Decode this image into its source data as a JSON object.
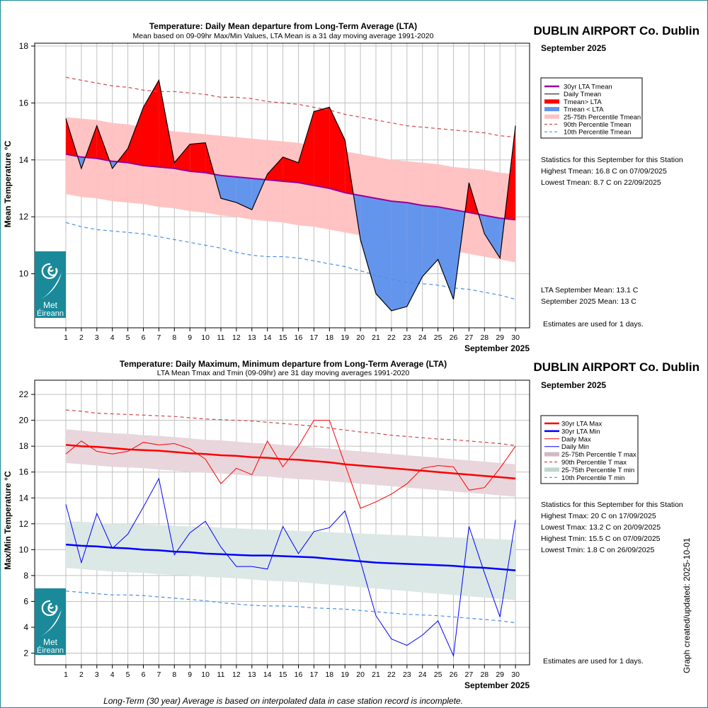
{
  "station": "DUBLIN AIRPORT Co. Dublin",
  "month": "September 2025",
  "footer_note": "Long-Term (30 year) Average is based on interpolated data in case station record is incomplete.",
  "created": "Graph created/updated:  2025-10-01",
  "logo_text": [
    "Met",
    "Éireann"
  ],
  "colors": {
    "logo_bg": "#1a8a9a",
    "above": "#ff0000",
    "below": "#6495ed",
    "lta": "#990099",
    "pct_band_top": "#ffc0c0",
    "red": "#ff0000",
    "blue": "#0000ff",
    "max_band": "#e8d6dc",
    "min_band": "#dbe8e6",
    "p90": "#d04a4a",
    "p10": "#4a8ee8"
  },
  "chart_data": [
    {
      "type": "line",
      "title": "Temperature: Daily Mean departure from Long-Term Average (LTA)",
      "subtitle": "Mean based on 09-09hr Max/Min Values, LTA Mean is a 31 day moving average 1991-2020",
      "ylabel": "Mean Temperature °C",
      "xlabel": "September 2025",
      "ylim": [
        8.1,
        18.1
      ],
      "yticks": [
        10,
        12,
        14,
        16,
        18
      ],
      "x": [
        1,
        2,
        3,
        4,
        5,
        6,
        7,
        8,
        9,
        10,
        11,
        12,
        13,
        14,
        15,
        16,
        17,
        18,
        19,
        20,
        21,
        22,
        23,
        24,
        25,
        26,
        27,
        28,
        29,
        30
      ],
      "series": [
        {
          "name": "30yr LTA Tmean",
          "values": [
            14.2,
            14.1,
            14.05,
            13.95,
            13.9,
            13.8,
            13.75,
            13.7,
            13.6,
            13.55,
            13.45,
            13.4,
            13.35,
            13.3,
            13.25,
            13.2,
            13.1,
            13.0,
            12.85,
            12.75,
            12.65,
            12.55,
            12.5,
            12.4,
            12.35,
            12.25,
            12.15,
            12.05,
            11.95,
            11.9
          ]
        },
        {
          "name": "Daily Tmean",
          "values": [
            15.45,
            13.7,
            15.2,
            13.7,
            14.4,
            15.85,
            16.8,
            13.9,
            14.55,
            14.6,
            12.65,
            12.5,
            12.25,
            13.5,
            14.1,
            13.9,
            15.7,
            15.85,
            14.7,
            11.2,
            9.3,
            8.7,
            8.85,
            9.9,
            10.5,
            9.1,
            13.2,
            11.4,
            10.55,
            15.2
          ]
        },
        {
          "name": "25-75th Percentile Tmean",
          "upper": [
            15.5,
            15.45,
            15.4,
            15.3,
            15.25,
            15.15,
            15.1,
            15.0,
            14.95,
            14.9,
            14.85,
            14.8,
            14.75,
            14.7,
            14.65,
            14.6,
            14.5,
            14.4,
            14.3,
            14.2,
            14.1,
            14.0,
            13.95,
            13.9,
            13.85,
            13.75,
            13.7,
            13.65,
            13.55,
            13.5
          ],
          "lower": [
            12.8,
            12.7,
            12.65,
            12.55,
            12.5,
            12.45,
            12.35,
            12.3,
            12.2,
            12.15,
            12.05,
            12.0,
            11.9,
            11.85,
            11.8,
            11.7,
            11.65,
            11.55,
            11.45,
            11.35,
            11.25,
            11.15,
            11.05,
            11.0,
            10.9,
            10.8,
            10.7,
            10.6,
            10.5,
            10.4
          ]
        },
        {
          "name": "90th Percentile Tmean",
          "values": [
            16.9,
            16.8,
            16.7,
            16.6,
            16.55,
            16.45,
            16.4,
            16.4,
            16.35,
            16.3,
            16.2,
            16.2,
            16.15,
            16.05,
            16.0,
            15.95,
            15.85,
            15.75,
            15.6,
            15.5,
            15.4,
            15.3,
            15.2,
            15.15,
            15.1,
            15.05,
            15.0,
            14.95,
            14.85,
            14.8
          ]
        },
        {
          "name": "10th Percentile Tmean",
          "values": [
            11.8,
            11.65,
            11.55,
            11.5,
            11.45,
            11.4,
            11.3,
            11.2,
            11.1,
            11.0,
            10.9,
            10.75,
            10.65,
            10.6,
            10.6,
            10.55,
            10.45,
            10.35,
            10.25,
            10.1,
            9.95,
            9.8,
            9.7,
            9.65,
            9.6,
            9.5,
            9.45,
            9.35,
            9.25,
            9.1
          ]
        }
      ],
      "legend": [
        "30yr LTA Tmean",
        "Daily Tmean",
        "Tmean> LTA",
        "Tmean < LTA",
        "25-75th Percentile Tmean",
        "90th Percentile Tmean",
        "10th Percentile Tmean"
      ],
      "legend_position": "right",
      "stats_title": "Statistics for this September for this Station",
      "stats": [
        "Highest Tmean: 16.8 C on 07/09/2025",
        "Lowest Tmean: 8.7 C on 22/09/2025"
      ],
      "means": [
        "LTA September Mean: 13.1 C",
        "September 2025 Mean: 13 C"
      ],
      "estimates": "Estimates are used for 1 days."
    },
    {
      "type": "line",
      "title": "Temperature: Daily Maximum, Minimum departure from Long-Term Average (LTA)",
      "subtitle": "LTA Mean Tmax and Tmin (09-09hr) are 31 day moving averages 1991-2020",
      "ylabel": "Max/Min Temperature °C",
      "xlabel": "September 2025",
      "ylim": [
        1.1,
        23.1
      ],
      "yticks": [
        2,
        4,
        6,
        8,
        10,
        12,
        14,
        16,
        18,
        20,
        22
      ],
      "x": [
        1,
        2,
        3,
        4,
        5,
        6,
        7,
        8,
        9,
        10,
        11,
        12,
        13,
        14,
        15,
        16,
        17,
        18,
        19,
        20,
        21,
        22,
        23,
        24,
        25,
        26,
        27,
        28,
        29,
        30
      ],
      "series": [
        {
          "name": "30yr LTA Max",
          "values": [
            18.1,
            18.0,
            17.95,
            17.85,
            17.75,
            17.7,
            17.65,
            17.55,
            17.45,
            17.4,
            17.3,
            17.25,
            17.15,
            17.1,
            17.0,
            16.95,
            16.85,
            16.75,
            16.6,
            16.5,
            16.4,
            16.3,
            16.2,
            16.1,
            16.0,
            15.9,
            15.8,
            15.7,
            15.6,
            15.5
          ]
        },
        {
          "name": "30yr LTA Min",
          "values": [
            10.4,
            10.3,
            10.25,
            10.15,
            10.1,
            10.0,
            9.95,
            9.85,
            9.8,
            9.7,
            9.65,
            9.6,
            9.55,
            9.55,
            9.5,
            9.45,
            9.4,
            9.3,
            9.2,
            9.1,
            9.0,
            8.95,
            8.9,
            8.85,
            8.8,
            8.75,
            8.65,
            8.6,
            8.5,
            8.4
          ]
        },
        {
          "name": "Daily Max",
          "values": [
            17.4,
            18.4,
            17.6,
            17.4,
            17.6,
            18.3,
            18.1,
            18.2,
            17.8,
            17.0,
            15.1,
            16.3,
            15.8,
            18.4,
            16.4,
            18.0,
            20.0,
            20.0,
            16.6,
            13.2,
            13.7,
            14.3,
            15.1,
            16.3,
            16.5,
            16.4,
            14.6,
            14.8,
            16.3,
            18.0
          ]
        },
        {
          "name": "Daily Min",
          "values": [
            13.5,
            9.0,
            12.8,
            10.1,
            11.2,
            13.3,
            15.5,
            9.6,
            11.3,
            12.2,
            10.2,
            8.7,
            8.7,
            8.5,
            11.8,
            9.7,
            11.4,
            11.7,
            13.0,
            9.1,
            4.9,
            3.1,
            2.6,
            3.4,
            4.5,
            1.8,
            11.8,
            8.2,
            4.8,
            12.3
          ]
        },
        {
          "name": "25-75th Percentile T max",
          "upper": [
            19.3,
            19.2,
            19.1,
            19.0,
            18.95,
            18.85,
            18.8,
            18.7,
            18.6,
            18.5,
            18.45,
            18.35,
            18.25,
            18.2,
            18.1,
            18.0,
            17.9,
            17.8,
            17.7,
            17.6,
            17.5,
            17.4,
            17.3,
            17.2,
            17.1,
            17.0,
            16.9,
            16.8,
            16.7,
            16.6
          ],
          "lower": [
            16.7,
            16.6,
            16.5,
            16.4,
            16.35,
            16.3,
            16.2,
            16.1,
            16.0,
            15.95,
            15.9,
            15.8,
            15.7,
            15.65,
            15.55,
            15.45,
            15.4,
            15.3,
            15.2,
            15.1,
            15.0,
            14.9,
            14.8,
            14.7,
            14.6,
            14.5,
            14.4,
            14.3,
            14.2,
            14.1
          ]
        },
        {
          "name": "90th Percentile T max",
          "values": [
            20.8,
            20.7,
            20.55,
            20.5,
            20.45,
            20.4,
            20.35,
            20.3,
            20.2,
            20.1,
            20.05,
            20.0,
            19.95,
            19.85,
            19.75,
            19.65,
            19.55,
            19.4,
            19.25,
            19.1,
            19.0,
            18.85,
            18.75,
            18.65,
            18.55,
            18.5,
            18.4,
            18.3,
            18.2,
            18.05
          ]
        },
        {
          "name": "25-75th Percentile T min",
          "upper": [
            12.2,
            12.15,
            12.1,
            12.0,
            12.0,
            11.95,
            11.9,
            11.85,
            11.8,
            11.75,
            11.7,
            11.65,
            11.6,
            11.55,
            11.5,
            11.45,
            11.4,
            11.35,
            11.3,
            11.25,
            11.2,
            11.15,
            11.1,
            11.05,
            11.0,
            10.95,
            10.9,
            10.85,
            10.8,
            10.75
          ],
          "lower": [
            8.6,
            8.5,
            8.4,
            8.3,
            8.25,
            8.2,
            8.1,
            8.05,
            8.0,
            7.9,
            7.85,
            7.8,
            7.7,
            7.6,
            7.55,
            7.5,
            7.4,
            7.3,
            7.2,
            7.1,
            7.0,
            6.9,
            6.8,
            6.7,
            6.6,
            6.5,
            6.4,
            6.3,
            6.2,
            6.1
          ]
        },
        {
          "name": "10th Percentile T min",
          "values": [
            6.8,
            6.7,
            6.6,
            6.5,
            6.5,
            6.45,
            6.35,
            6.25,
            6.15,
            6.05,
            5.9,
            5.8,
            5.7,
            5.65,
            5.65,
            5.6,
            5.5,
            5.45,
            5.4,
            5.3,
            5.2,
            5.1,
            5.0,
            4.95,
            4.9,
            4.8,
            4.7,
            4.6,
            4.5,
            4.35
          ]
        }
      ],
      "legend": [
        "30yr LTA Max",
        "30yr LTA Min",
        "Daily Max",
        "Daily Min",
        "25-75th Percentile T max",
        "90th Percentile T max",
        "25-75th Percentile T min",
        "10th Percentile T min"
      ],
      "legend_position": "right",
      "stats_title": "Statistics for this September for this Station",
      "stats": [
        "Highest Tmax: 20 C on 17/09/2025",
        "Lowest Tmax: 13.2 C on 20/09/2025",
        "Highest Tmin: 15.5 C on 07/09/2025",
        "Lowest Tmin: 1.8 C on 26/09/2025"
      ],
      "estimates": "Estimates are used for 1 days."
    }
  ]
}
